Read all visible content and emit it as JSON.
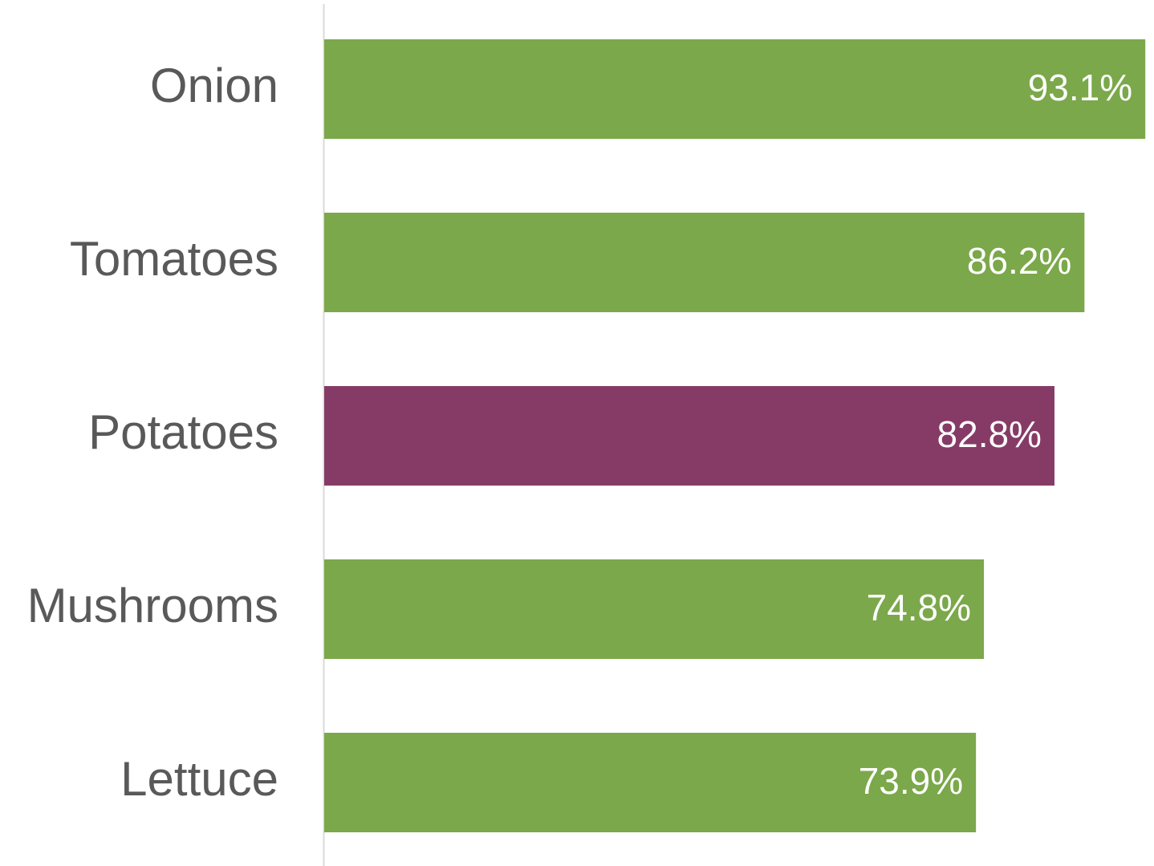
{
  "chart_data": {
    "type": "bar",
    "orientation": "horizontal",
    "categories": [
      "Onion",
      "Tomatoes",
      "Potatoes",
      "Mushrooms",
      "Lettuce"
    ],
    "values": [
      93.1,
      86.2,
      82.8,
      74.8,
      73.9
    ],
    "value_labels": [
      "93.1%",
      "86.2%",
      "82.8%",
      "74.8%",
      "73.9%"
    ],
    "colors": [
      "#7ba84a",
      "#7ba84a",
      "#863b67",
      "#7ba84a",
      "#7ba84a"
    ]
  }
}
